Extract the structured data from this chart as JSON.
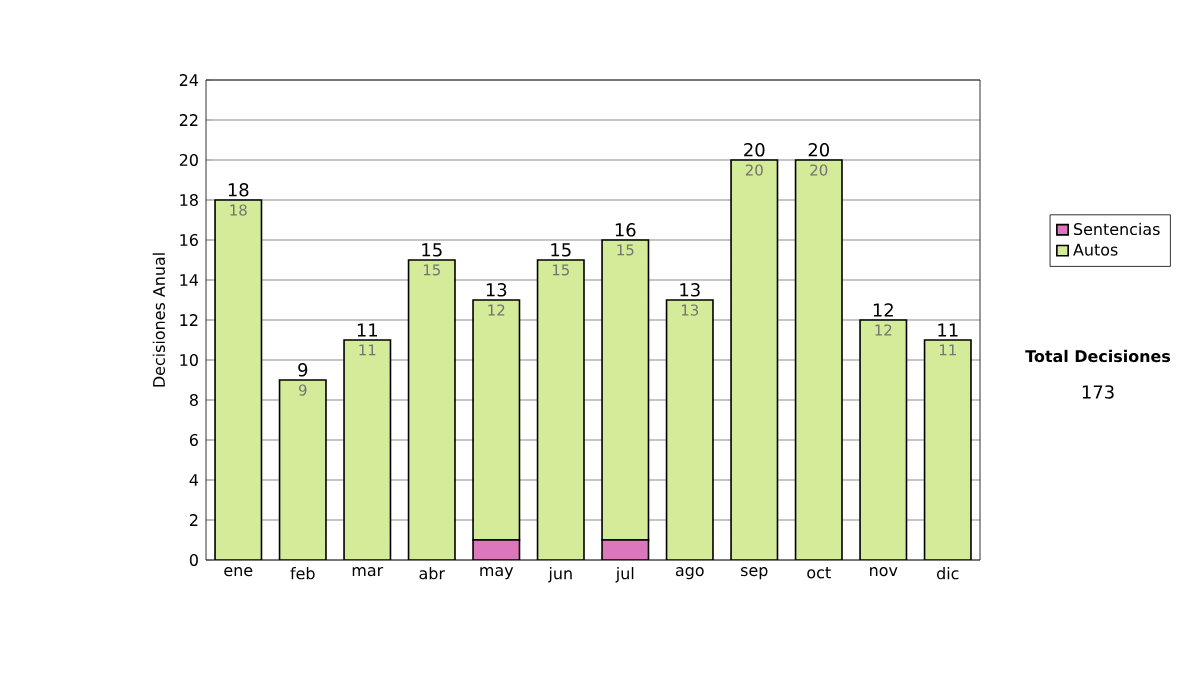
{
  "chart_data": {
    "type": "bar",
    "stacked": true,
    "ylabel": "Decisiones Anual",
    "categories": [
      "ene",
      "feb",
      "mar",
      "abr",
      "may",
      "jun",
      "jul",
      "ago",
      "sep",
      "oct",
      "nov",
      "dic"
    ],
    "series": [
      {
        "name": "Sentencias",
        "color": "#dd77bb",
        "values": [
          0,
          0,
          0,
          0,
          1,
          0,
          1,
          0,
          0,
          0,
          0,
          0
        ]
      },
      {
        "name": "Autos",
        "color": "#d4eb99",
        "values": [
          18,
          9,
          11,
          15,
          12,
          15,
          15,
          13,
          20,
          20,
          12,
          11
        ],
        "value_labels": [
          "18",
          "9",
          "11",
          "15",
          "12",
          "15",
          "15",
          "13",
          "20",
          "20",
          "12",
          "11"
        ]
      }
    ],
    "totals": [
      "18",
      "9",
      "11",
      "15",
      "13",
      "15",
      "16",
      "13",
      "20",
      "20",
      "12",
      "11"
    ],
    "ylim": [
      0,
      24
    ],
    "yticks": [
      0,
      2,
      4,
      6,
      8,
      10,
      12,
      14,
      16,
      18,
      20,
      22,
      24
    ],
    "grid": "y",
    "legend": "right",
    "annotations": [
      "Total Decisiones",
      "173"
    ]
  }
}
